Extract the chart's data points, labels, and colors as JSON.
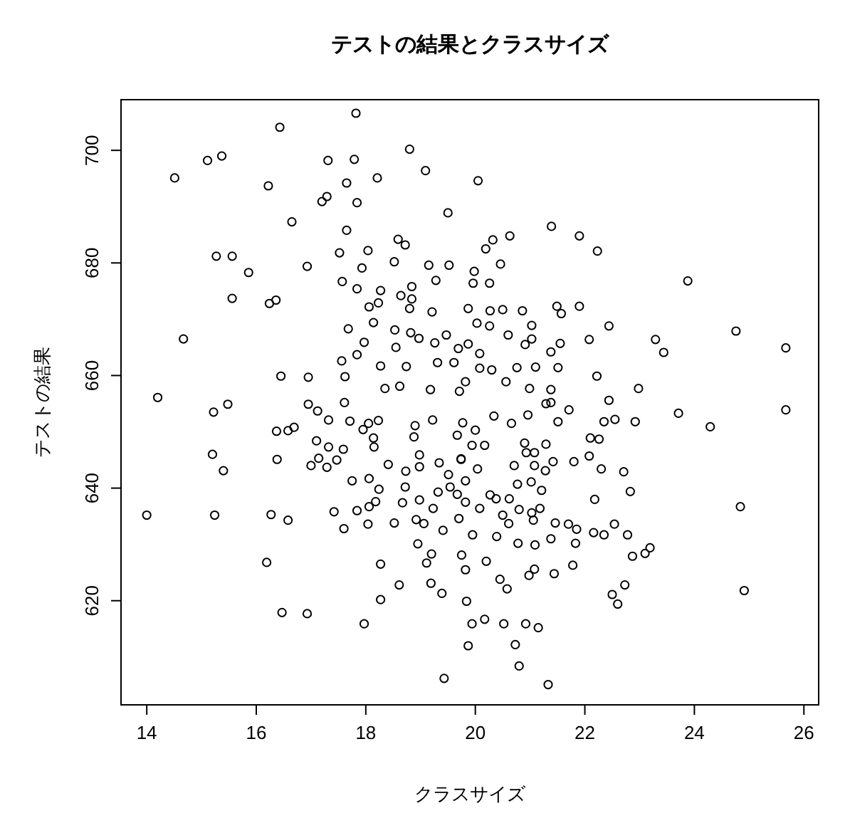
{
  "chart_data": {
    "type": "scatter",
    "title": "テストの結果とクラスサイズ",
    "xlabel": "クラスサイズ",
    "ylabel": "テストの結果",
    "marker": "circle",
    "color": "#000000",
    "xlim": [
      13.53,
      26.27
    ],
    "ylim": [
      601.5,
      709
    ],
    "xticks": [
      14,
      16,
      18,
      20,
      22,
      24,
      26
    ],
    "yticks": [
      620,
      640,
      660,
      680,
      700
    ],
    "x": [
      17.82,
      16.43,
      15.11,
      15.37,
      14.51,
      16.22,
      17.31,
      17.79,
      18.8,
      19.09,
      18.21,
      17.65,
      17.2,
      17.29,
      17.84,
      19.5,
      16.65,
      17.65,
      15.27,
      15.56,
      15.86,
      16.93,
      15.56,
      16.24,
      16.36,
      14.67,
      16.45,
      16.95,
      14.2,
      15.48,
      17.52,
      18.04,
      18.59,
      18.72,
      18.52,
      17.93,
      17.57,
      17.84,
      18.27,
      18.84,
      19.15,
      19.52,
      19.28,
      18.06,
      18.23,
      18.64,
      18.84,
      18.8,
      19.21,
      19.87,
      17.68,
      18.14,
      18.53,
      18.82,
      19.47,
      17.97,
      17.84,
      17.56,
      18.27,
      18.74,
      18.55,
      18.97,
      19.26,
      19.69,
      19.31,
      19.61,
      17.62,
      16.95,
      17.61,
      18.35,
      18.62,
      19.18,
      19.71,
      20.05,
      21.39,
      21.9,
      22.23,
      23.88,
      20.63,
      20.32,
      20.19,
      20.46,
      19.98,
      19.96,
      20.26,
      21.9,
      21.49,
      21.57,
      22.44,
      23.29,
      23.44,
      24.76,
      25.67,
      22.08,
      21.55,
      21.38,
      21.03,
      20.86,
      20.5,
      20.27,
      20.26,
      20.03,
      20.6,
      21.03,
      20.91,
      21.1,
      21.51,
      22.22,
      22.98,
      22.44,
      21.71,
      21.38,
      20.76,
      20.56,
      20.3,
      20.08,
      19.82,
      20.08,
      19.87,
      20.99,
      21.38,
      14.0,
      15.24,
      15.2,
      15.4,
      15.22,
      16.19,
      16.27,
      16.58,
      16.47,
      16.93,
      17.97,
      18.27,
      18.61,
      18.27,
      19.19,
      19.39,
      19.43,
      18.95,
      19.2,
      19.11,
      19.41,
      18.92,
      19.06,
      18.52,
      18.04,
      17.6,
      17.42,
      17.84,
      18.06,
      18.18,
      18.24,
      18.67,
      18.98,
      19.23,
      19.32,
      19.54,
      19.67,
      17.75,
      18.06,
      18.41,
      18.72,
      18.73,
      18.98,
      19.34,
      19.51,
      19.74,
      17.0,
      17.29,
      17.14,
      17.32,
      17.47,
      17.59,
      17.1,
      16.38,
      16.37,
      16.58,
      16.69,
      17.32,
      17.71,
      17.95,
      18.14,
      18.15,
      18.05,
      18.23,
      17.12,
      18.88,
      18.9,
      18.98,
      19.22,
      19.67,
      19.77,
      23.71,
      24.29,
      25.67,
      24.84,
      24.91,
      22.92,
      22.55,
      22.35,
      22.1,
      22.26,
      22.08,
      21.8,
      22.3,
      22.71,
      22.83,
      22.18,
      22.54,
      22.78,
      22.87,
      22.35,
      22.16,
      21.83,
      21.78,
      21.44,
      21.08,
      20.98,
      21.38,
      21.46,
      21.7,
      21.85,
      21.06,
      21.09,
      20.78,
      21.18,
      20.8,
      20.61,
      20.39,
      20.2,
      20.45,
      20.58,
      19.84,
      19.94,
      20.17,
      20.52,
      20.92,
      21.15,
      20.73,
      20.8,
      21.33,
      19.87,
      19.82,
      19.75,
      20.62,
      21.03,
      20.77,
      21.02,
      21.21,
      20.71,
      21.08,
      21.28,
      21.42,
      21.51,
      21.29,
      20.96,
      20.66,
      20.34,
      20.0,
      19.94,
      20.17,
      20.9,
      21.08,
      21.29,
      20.93,
      19.82,
      20.04,
      19.82,
      20.08,
      20.27,
      20.38,
      20.5,
      19.7,
      19.95,
      19.74,
      22.5,
      22.6,
      22.73,
      23.1,
      23.19
    ],
    "values": [
      706.6,
      704.1,
      698.2,
      699.0,
      695.1,
      693.7,
      698.2,
      698.4,
      700.2,
      696.4,
      695.1,
      694.2,
      690.9,
      691.8,
      690.7,
      688.9,
      687.3,
      685.8,
      681.2,
      681.2,
      678.3,
      679.4,
      673.7,
      672.8,
      673.4,
      666.5,
      659.9,
      659.7,
      656.1,
      654.9,
      681.8,
      682.2,
      684.2,
      683.2,
      680.2,
      679.1,
      676.7,
      675.4,
      675.1,
      675.8,
      679.6,
      679.6,
      676.9,
      672.2,
      672.9,
      674.2,
      673.6,
      671.9,
      671.3,
      671.9,
      668.3,
      669.4,
      668.1,
      667.6,
      667.2,
      665.9,
      663.7,
      662.6,
      661.7,
      661.6,
      665.0,
      666.6,
      665.8,
      664.8,
      662.3,
      662.3,
      659.8,
      654.9,
      655.2,
      657.7,
      658.1,
      657.5,
      657.2,
      694.6,
      686.5,
      684.8,
      682.1,
      676.8,
      684.8,
      684.1,
      682.5,
      679.8,
      678.5,
      676.4,
      676.4,
      672.3,
      672.3,
      671.0,
      668.8,
      666.4,
      664.1,
      667.9,
      664.9,
      666.4,
      665.7,
      664.2,
      668.9,
      671.5,
      671.7,
      671.5,
      668.8,
      669.3,
      667.2,
      666.5,
      665.5,
      661.5,
      661.4,
      659.9,
      657.7,
      655.6,
      653.9,
      657.5,
      661.4,
      658.9,
      661.0,
      661.3,
      658.9,
      663.9,
      665.6,
      657.7,
      655.2,
      635.2,
      635.2,
      646.0,
      643.1,
      653.5,
      626.8,
      635.3,
      634.3,
      617.9,
      617.7,
      615.9,
      620.2,
      622.8,
      626.5,
      623.1,
      621.3,
      606.2,
      630.1,
      628.3,
      626.7,
      632.5,
      634.4,
      633.7,
      633.8,
      633.6,
      632.8,
      635.8,
      636.0,
      636.7,
      637.6,
      639.8,
      637.4,
      637.9,
      636.4,
      639.3,
      640.2,
      638.9,
      641.3,
      641.7,
      644.2,
      640.2,
      643.0,
      643.8,
      644.5,
      642.4,
      645.1,
      644.0,
      643.7,
      645.3,
      647.3,
      645.0,
      646.9,
      648.4,
      645.1,
      650.1,
      650.2,
      650.8,
      652.1,
      651.9,
      650.4,
      648.9,
      647.3,
      651.5,
      652.0,
      653.7,
      649.1,
      651.1,
      645.9,
      652.1,
      649.4,
      651.6,
      653.3,
      650.9,
      653.9,
      636.7,
      621.8,
      651.8,
      652.2,
      651.8,
      648.9,
      648.7,
      645.7,
      644.7,
      643.4,
      642.9,
      639.4,
      638.0,
      633.6,
      631.7,
      627.9,
      631.7,
      632.1,
      630.2,
      626.3,
      624.8,
      625.6,
      624.5,
      631.0,
      633.8,
      633.6,
      632.7,
      634.3,
      629.9,
      630.2,
      636.4,
      636.2,
      633.7,
      631.4,
      627.0,
      623.8,
      622.1,
      619.9,
      615.9,
      616.7,
      615.9,
      615.9,
      615.2,
      612.2,
      608.4,
      605.1,
      612.0,
      625.5,
      628.1,
      638.1,
      635.6,
      640.7,
      641.1,
      639.6,
      644.0,
      644.0,
      643.1,
      644.7,
      651.8,
      655.0,
      653.0,
      651.5,
      652.8,
      650.3,
      647.6,
      647.6,
      648.0,
      646.3,
      647.8,
      646.3,
      641.3,
      643.4,
      637.5,
      636.4,
      638.8,
      638.1,
      635.2,
      634.6,
      631.7,
      645.2,
      621.1,
      619.4,
      622.8,
      628.4,
      629.4
    ]
  }
}
